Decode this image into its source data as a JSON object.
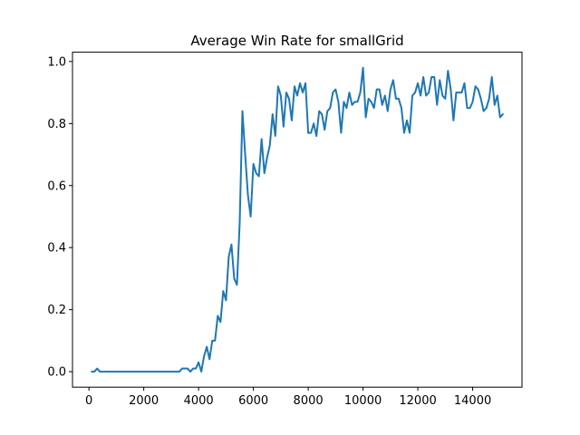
{
  "chart_data": {
    "type": "line",
    "title": "Average Win Rate for smallGrid",
    "xlabel": "",
    "ylabel": "",
    "xlim": [
      -600,
      15800
    ],
    "ylim": [
      -0.05,
      1.03
    ],
    "x_ticks": [
      0,
      2000,
      4000,
      6000,
      8000,
      10000,
      12000,
      14000
    ],
    "y_ticks": [
      0.0,
      0.2,
      0.4,
      0.6,
      0.8,
      1.0
    ],
    "x_tick_labels": [
      "0",
      "2000",
      "4000",
      "6000",
      "8000",
      "10000",
      "12000",
      "14000"
    ],
    "y_tick_labels": [
      "0.0",
      "0.2",
      "0.4",
      "0.6",
      "0.8",
      "1.0"
    ],
    "grid": false,
    "legend": "none",
    "series": [
      {
        "color": "#1f77b4",
        "x": [
          100,
          200,
          300,
          400,
          500,
          600,
          700,
          800,
          900,
          1000,
          1100,
          1200,
          1300,
          1400,
          1500,
          1600,
          1700,
          1800,
          1900,
          2000,
          2100,
          2200,
          2300,
          2400,
          2500,
          2600,
          2700,
          2800,
          2900,
          3000,
          3100,
          3200,
          3300,
          3400,
          3500,
          3600,
          3700,
          3800,
          3900,
          4000,
          4100,
          4200,
          4300,
          4400,
          4500,
          4600,
          4700,
          4800,
          4900,
          5000,
          5100,
          5200,
          5300,
          5400,
          5500,
          5600,
          5700,
          5800,
          5900,
          6000,
          6100,
          6200,
          6300,
          6400,
          6500,
          6600,
          6700,
          6800,
          6900,
          7000,
          7100,
          7200,
          7300,
          7400,
          7500,
          7600,
          7700,
          7800,
          7900,
          8000,
          8100,
          8200,
          8300,
          8400,
          8500,
          8600,
          8700,
          8800,
          8900,
          9000,
          9100,
          9200,
          9300,
          9400,
          9500,
          9600,
          9700,
          9800,
          9900,
          10000,
          10100,
          10200,
          10300,
          10400,
          10500,
          10600,
          10700,
          10800,
          10900,
          11000,
          11100,
          11200,
          11300,
          11400,
          11500,
          11600,
          11700,
          11800,
          11900,
          12000,
          12100,
          12200,
          12300,
          12400,
          12500,
          12600,
          12700,
          12800,
          12900,
          13000,
          13100,
          13200,
          13300,
          13400,
          13500,
          13600,
          13700,
          13800,
          13900,
          14000,
          14100,
          14200,
          14300,
          14400,
          14500,
          14600,
          14700,
          14800,
          14900,
          15000,
          15100
        ],
        "y": [
          0.0,
          0.0,
          0.01,
          0.0,
          0.0,
          0.0,
          0.0,
          0.0,
          0.0,
          0.0,
          0.0,
          0.0,
          0.0,
          0.0,
          0.0,
          0.0,
          0.0,
          0.0,
          0.0,
          0.0,
          0.0,
          0.0,
          0.0,
          0.0,
          0.0,
          0.0,
          0.0,
          0.0,
          0.0,
          0.0,
          0.0,
          0.0,
          0.0,
          0.01,
          0.01,
          0.01,
          0.0,
          0.01,
          0.01,
          0.03,
          0.0,
          0.05,
          0.08,
          0.04,
          0.1,
          0.1,
          0.18,
          0.16,
          0.26,
          0.23,
          0.37,
          0.41,
          0.3,
          0.28,
          0.48,
          0.84,
          0.7,
          0.57,
          0.5,
          0.67,
          0.64,
          0.63,
          0.75,
          0.64,
          0.69,
          0.73,
          0.83,
          0.76,
          0.92,
          0.89,
          0.79,
          0.9,
          0.88,
          0.81,
          0.92,
          0.89,
          0.93,
          0.9,
          0.93,
          0.77,
          0.77,
          0.8,
          0.76,
          0.84,
          0.83,
          0.78,
          0.84,
          0.85,
          0.9,
          0.91,
          0.87,
          0.77,
          0.87,
          0.85,
          0.9,
          0.86,
          0.87,
          0.87,
          0.9,
          0.98,
          0.82,
          0.88,
          0.87,
          0.85,
          0.91,
          0.91,
          0.86,
          0.89,
          0.84,
          0.91,
          0.94,
          0.88,
          0.88,
          0.85,
          0.77,
          0.81,
          0.77,
          0.89,
          0.9,
          0.93,
          0.89,
          0.95,
          0.89,
          0.9,
          0.95,
          0.95,
          0.86,
          0.94,
          0.89,
          0.88,
          0.97,
          0.91,
          0.81,
          0.9,
          0.9,
          0.9,
          0.93,
          0.85,
          0.85,
          0.87,
          0.92,
          0.91,
          0.88,
          0.84,
          0.85,
          0.88,
          0.95,
          0.86,
          0.89,
          0.82,
          0.83
        ]
      }
    ]
  }
}
